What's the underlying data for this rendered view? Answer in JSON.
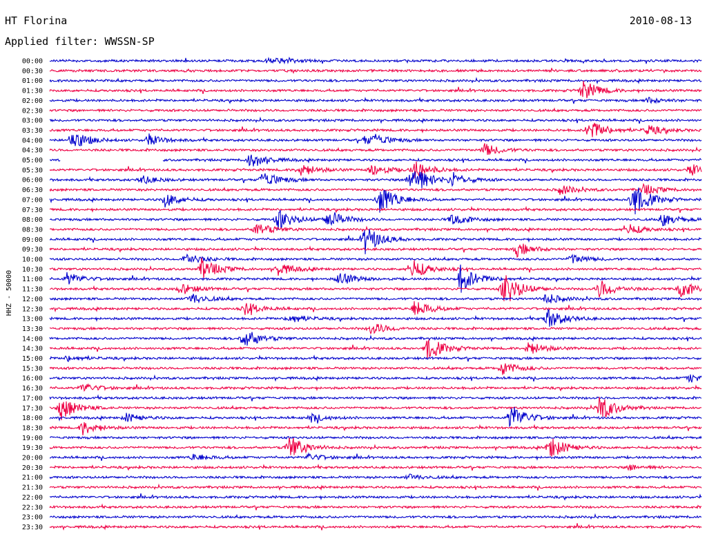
{
  "header": {
    "station": "HT Florina",
    "date": "2010-08-13",
    "filter": "Applied filter: WWSSN-SP"
  },
  "chart_data": {
    "type": "line",
    "title": "HT Florina",
    "ylabel": "HHZ - 50000",
    "row_times": [
      "00:00",
      "00:30",
      "01:00",
      "01:30",
      "02:00",
      "02:30",
      "03:00",
      "03:30",
      "04:00",
      "04:30",
      "05:00",
      "05:30",
      "06:00",
      "06:30",
      "07:00",
      "07:30",
      "08:00",
      "08:30",
      "09:00",
      "09:30",
      "10:00",
      "10:30",
      "11:00",
      "11:30",
      "12:00",
      "12:30",
      "13:00",
      "13:30",
      "14:00",
      "14:30",
      "15:00",
      "15:30",
      "16:00",
      "16:30",
      "17:00",
      "17:30",
      "18:00",
      "18:30",
      "19:00",
      "19:30",
      "20:00",
      "20:30",
      "21:00",
      "21:30",
      "22:00",
      "22:30",
      "23:00",
      "23:30"
    ],
    "colors": [
      "#0000cc",
      "#ee0044"
    ],
    "trace_minutes": 30,
    "gaps": [
      {
        "row": "05:00",
        "from_min": 0.5,
        "to_min": 5.2
      }
    ],
    "events": [
      {
        "row": "00:00",
        "min": 10.0,
        "amp": 0.3
      },
      {
        "row": "00:00",
        "min": 10.5,
        "amp": 0.3
      },
      {
        "row": "01:30",
        "min": 24.5,
        "amp": 1.5
      },
      {
        "row": "02:00",
        "min": 27.5,
        "amp": 0.4
      },
      {
        "row": "03:30",
        "min": 24.8,
        "amp": 1.6
      },
      {
        "row": "03:30",
        "min": 27.5,
        "amp": 0.7
      },
      {
        "row": "04:00",
        "min": 1.0,
        "amp": 1.5
      },
      {
        "row": "04:00",
        "min": 4.5,
        "amp": 0.8
      },
      {
        "row": "04:00",
        "min": 14.5,
        "amp": 0.6
      },
      {
        "row": "04:00",
        "min": 15.0,
        "amp": 0.6
      },
      {
        "row": "04:30",
        "min": 20.0,
        "amp": 0.9
      },
      {
        "row": "05:00",
        "min": 9.2,
        "amp": 1.2
      },
      {
        "row": "05:30",
        "min": 11.5,
        "amp": 1.0
      },
      {
        "row": "05:30",
        "min": 14.8,
        "amp": 0.9
      },
      {
        "row": "05:30",
        "min": 16.8,
        "amp": 1.3
      },
      {
        "row": "05:30",
        "min": 29.5,
        "amp": 0.8
      },
      {
        "row": "06:00",
        "min": 4.2,
        "amp": 0.6
      },
      {
        "row": "06:00",
        "min": 9.8,
        "amp": 1.3
      },
      {
        "row": "06:00",
        "min": 16.6,
        "amp": 2.6
      },
      {
        "row": "06:00",
        "min": 18.5,
        "amp": 1.0
      },
      {
        "row": "06:30",
        "min": 23.5,
        "amp": 0.7
      },
      {
        "row": "06:30",
        "min": 27.3,
        "amp": 0.8
      },
      {
        "row": "07:00",
        "min": 5.3,
        "amp": 1.0
      },
      {
        "row": "07:00",
        "min": 15.2,
        "amp": 2.2
      },
      {
        "row": "07:00",
        "min": 26.8,
        "amp": 2.6
      },
      {
        "row": "08:00",
        "min": 10.5,
        "amp": 1.5
      },
      {
        "row": "08:00",
        "min": 12.8,
        "amp": 1.4
      },
      {
        "row": "08:00",
        "min": 18.5,
        "amp": 0.9
      },
      {
        "row": "08:00",
        "min": 28.2,
        "amp": 0.9
      },
      {
        "row": "08:30",
        "min": 9.5,
        "amp": 1.0
      },
      {
        "row": "08:30",
        "min": 26.5,
        "amp": 0.9
      },
      {
        "row": "09:00",
        "min": 14.5,
        "amp": 2.0
      },
      {
        "row": "09:30",
        "min": 21.5,
        "amp": 1.0
      },
      {
        "row": "10:00",
        "min": 6.2,
        "amp": 0.9
      },
      {
        "row": "10:00",
        "min": 24.0,
        "amp": 0.7
      },
      {
        "row": "10:30",
        "min": 7.0,
        "amp": 1.6
      },
      {
        "row": "10:30",
        "min": 10.5,
        "amp": 0.9
      },
      {
        "row": "10:30",
        "min": 16.6,
        "amp": 1.6
      },
      {
        "row": "11:00",
        "min": 0.8,
        "amp": 0.9
      },
      {
        "row": "11:00",
        "min": 13.3,
        "amp": 1.0
      },
      {
        "row": "11:00",
        "min": 18.9,
        "amp": 2.0
      },
      {
        "row": "11:30",
        "min": 6.0,
        "amp": 0.8
      },
      {
        "row": "11:30",
        "min": 20.9,
        "amp": 2.6
      },
      {
        "row": "11:30",
        "min": 25.3,
        "amp": 1.3
      },
      {
        "row": "11:30",
        "min": 29.0,
        "amp": 1.3
      },
      {
        "row": "12:00",
        "min": 6.5,
        "amp": 0.8
      },
      {
        "row": "12:00",
        "min": 22.8,
        "amp": 0.8
      },
      {
        "row": "12:30",
        "min": 9.0,
        "amp": 0.9
      },
      {
        "row": "12:30",
        "min": 16.8,
        "amp": 1.2
      },
      {
        "row": "13:00",
        "min": 11.0,
        "amp": 0.7
      },
      {
        "row": "13:00",
        "min": 22.9,
        "amp": 1.5
      },
      {
        "row": "13:30",
        "min": 14.8,
        "amp": 0.9
      },
      {
        "row": "14:00",
        "min": 8.9,
        "amp": 1.5
      },
      {
        "row": "14:30",
        "min": 17.4,
        "amp": 1.7
      },
      {
        "row": "14:30",
        "min": 22.0,
        "amp": 1.0
      },
      {
        "row": "15:00",
        "min": 0.8,
        "amp": 0.4
      },
      {
        "row": "15:30",
        "min": 20.8,
        "amp": 1.0
      },
      {
        "row": "16:00",
        "min": 29.4,
        "amp": 0.6
      },
      {
        "row": "16:30",
        "min": 1.5,
        "amp": 0.7
      },
      {
        "row": "17:30",
        "min": 0.5,
        "amp": 1.7
      },
      {
        "row": "17:30",
        "min": 25.3,
        "amp": 1.9
      },
      {
        "row": "18:00",
        "min": 3.5,
        "amp": 0.6
      },
      {
        "row": "18:00",
        "min": 12.0,
        "amp": 0.6
      },
      {
        "row": "18:00",
        "min": 21.2,
        "amp": 2.0
      },
      {
        "row": "18:30",
        "min": 1.5,
        "amp": 1.0
      },
      {
        "row": "19:30",
        "min": 11.0,
        "amp": 1.8
      },
      {
        "row": "19:30",
        "min": 23.0,
        "amp": 1.6
      },
      {
        "row": "20:00",
        "min": 6.6,
        "amp": 0.5
      },
      {
        "row": "20:00",
        "min": 11.9,
        "amp": 0.5
      },
      {
        "row": "20:30",
        "min": 26.7,
        "amp": 0.4
      },
      {
        "row": "21:00",
        "min": 16.5,
        "amp": 0.4
      }
    ]
  }
}
